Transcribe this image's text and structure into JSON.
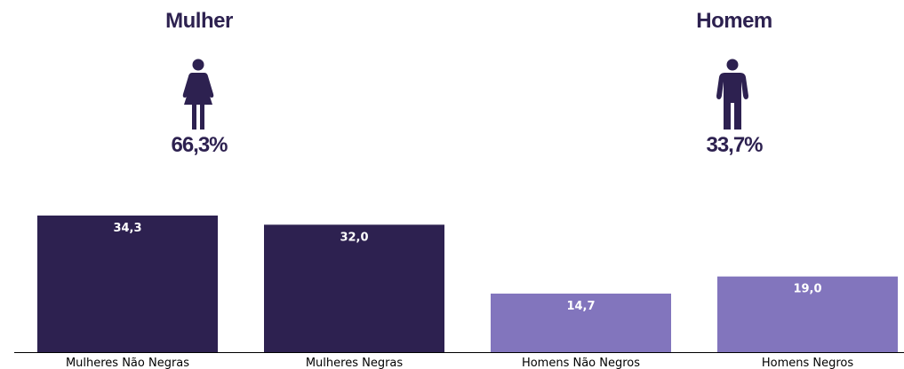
{
  "gender": {
    "female": {
      "label": "Mulher",
      "percent": "66,3%",
      "icon": "woman-icon"
    },
    "male": {
      "label": "Homem",
      "percent": "33,7%",
      "icon": "man-icon"
    }
  },
  "colors": {
    "dark": "#2d2150",
    "light": "#8275bd",
    "text": "#2d2150",
    "axis": "#000000"
  },
  "chart_data": {
    "type": "bar",
    "categories": [
      "Mulheres Não Negras",
      "Mulheres Negras",
      "Homens Não Negros",
      "Homens Negros"
    ],
    "values": [
      34.3,
      32.0,
      14.7,
      19.0
    ],
    "value_labels": [
      "34,3",
      "32,0",
      "14,7",
      "19,0"
    ],
    "bar_colors": [
      "#2d2150",
      "#2d2150",
      "#8275bd",
      "#8275bd"
    ],
    "ylim": [
      0,
      40
    ],
    "grid": false
  }
}
